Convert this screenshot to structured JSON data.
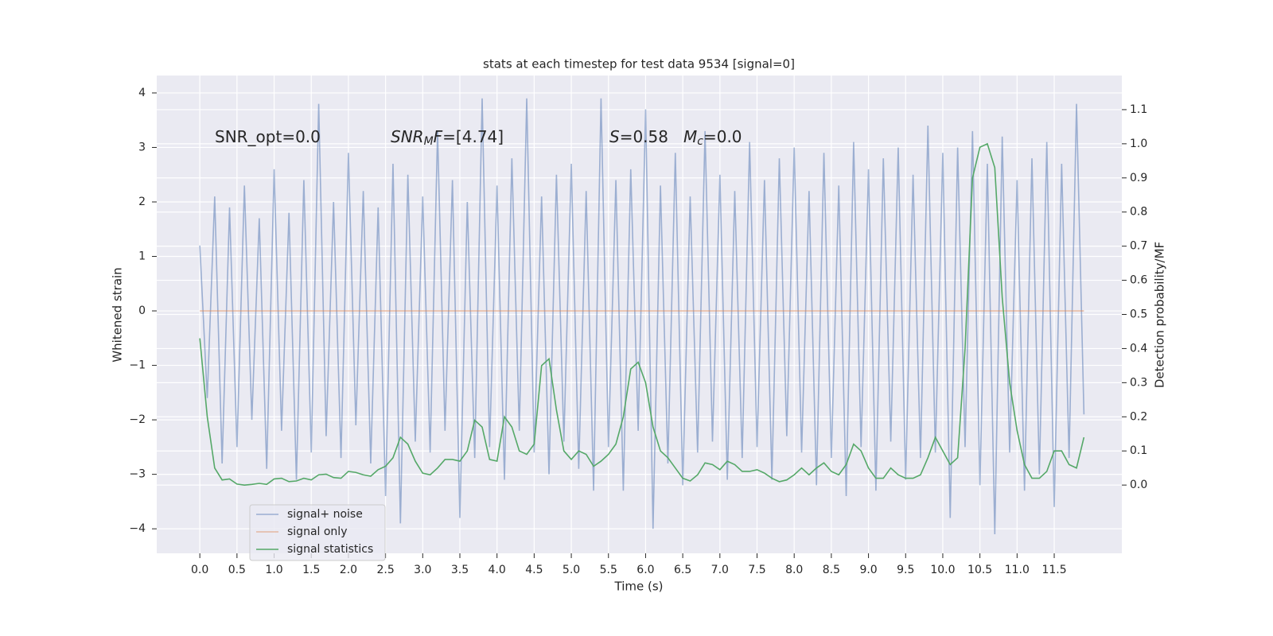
{
  "chart_data": {
    "type": "line",
    "title": "stats at each timestep for test data 9534 [signal=0]",
    "xlabel": "Time (s)",
    "ylabel": "Whitened strain",
    "y2label": "Detection probability/MF",
    "annotations": [
      {
        "segments": [
          {
            "text": "SNR_opt=0.0"
          }
        ]
      },
      {
        "segments": [
          {
            "text": "SNR",
            "style": "italic"
          },
          {
            "text": "M",
            "style": "sub"
          },
          {
            "text": "F",
            "style": "italic"
          },
          {
            "text": "=[4.74]"
          }
        ]
      },
      {
        "segments": [
          {
            "text": "S",
            "style": "italic"
          },
          {
            "text": "=0.58"
          }
        ]
      },
      {
        "segments": [
          {
            "text": "M",
            "style": "italic"
          },
          {
            "text": "c",
            "style": "sub"
          },
          {
            "text": "=0.0"
          }
        ]
      }
    ],
    "x": [
      0.0,
      0.1,
      0.2,
      0.3,
      0.4,
      0.5,
      0.6,
      0.7,
      0.8,
      0.9,
      1.0,
      1.1,
      1.2,
      1.3,
      1.4,
      1.5,
      1.6,
      1.7,
      1.8,
      1.9,
      2.0,
      2.1,
      2.2,
      2.3,
      2.4,
      2.5,
      2.6,
      2.7,
      2.8,
      2.9,
      3.0,
      3.1,
      3.2,
      3.3,
      3.4,
      3.5,
      3.6,
      3.7,
      3.8,
      3.9,
      4.0,
      4.1,
      4.2,
      4.3,
      4.4,
      4.5,
      4.6,
      4.7,
      4.8,
      4.9,
      5.0,
      5.1,
      5.2,
      5.3,
      5.4,
      5.5,
      5.6,
      5.7,
      5.8,
      5.9,
      6.0,
      6.1,
      6.2,
      6.3,
      6.4,
      6.5,
      6.6,
      6.7,
      6.8,
      6.9,
      7.0,
      7.1,
      7.2,
      7.3,
      7.4,
      7.5,
      7.6,
      7.7,
      7.8,
      7.9,
      8.0,
      8.1,
      8.2,
      8.3,
      8.4,
      8.5,
      8.6,
      8.7,
      8.8,
      8.9,
      9.0,
      9.1,
      9.2,
      9.3,
      9.4,
      9.5,
      9.6,
      9.7,
      9.8,
      9.9,
      10.0,
      10.1,
      10.2,
      10.3,
      10.4,
      10.5,
      10.6,
      10.7,
      10.8,
      10.9,
      11.0,
      11.1,
      11.2,
      11.3,
      11.4,
      11.5,
      11.6,
      11.7,
      11.8,
      11.9
    ],
    "series": [
      {
        "name": "signal+ noise",
        "color": "#4c72b0",
        "opacity": 0.5,
        "values": [
          1.2,
          -1.6,
          2.1,
          -2.8,
          1.9,
          -2.5,
          2.3,
          -2.0,
          1.7,
          -2.9,
          2.6,
          -2.2,
          1.8,
          -3.1,
          2.4,
          -2.6,
          3.8,
          -2.3,
          2.0,
          -2.7,
          2.9,
          -2.1,
          2.2,
          -2.8,
          1.9,
          -3.4,
          2.7,
          -3.9,
          2.5,
          -2.4,
          2.1,
          -2.6,
          3.3,
          -2.2,
          2.4,
          -3.8,
          2.0,
          -2.7,
          3.9,
          -2.5,
          2.3,
          -3.1,
          2.8,
          -2.2,
          3.9,
          -2.6,
          2.1,
          -3.0,
          2.5,
          -2.4,
          2.7,
          -2.9,
          2.2,
          -3.3,
          3.9,
          -2.5,
          2.4,
          -3.3,
          2.6,
          -2.2,
          3.7,
          -4.0,
          2.3,
          -2.8,
          2.9,
          -3.2,
          2.1,
          -2.6,
          3.3,
          -2.4,
          2.5,
          -3.1,
          2.2,
          -2.7,
          3.1,
          -2.5,
          2.4,
          -3.1,
          2.8,
          -2.3,
          3.0,
          -2.6,
          2.2,
          -3.2,
          2.9,
          -2.7,
          2.3,
          -3.4,
          3.1,
          -2.5,
          2.6,
          -3.3,
          2.8,
          -2.4,
          3.0,
          -3.1,
          2.5,
          -2.7,
          3.4,
          -2.6,
          2.9,
          -3.8,
          3.0,
          -2.5,
          3.3,
          -3.2,
          2.7,
          -4.1,
          3.2,
          -2.6,
          2.4,
          -3.3,
          2.8,
          -3.0,
          3.1,
          -3.6,
          2.7,
          -2.7,
          3.8,
          -1.9
        ]
      },
      {
        "name": "signal only",
        "color": "#dd8452",
        "opacity": 0.5,
        "x": [
          0.0,
          11.9
        ],
        "values": [
          0,
          0
        ]
      },
      {
        "name": "signal statistics",
        "color": "#55a868",
        "opacity": 1,
        "axis": "y2",
        "values": [
          0.43,
          0.2,
          0.05,
          0.015,
          0.018,
          0.003,
          0.0,
          0.002,
          0.005,
          0.002,
          0.018,
          0.02,
          0.01,
          0.012,
          0.02,
          0.015,
          0.03,
          0.032,
          0.022,
          0.02,
          0.04,
          0.037,
          0.03,
          0.026,
          0.045,
          0.055,
          0.08,
          0.14,
          0.12,
          0.07,
          0.035,
          0.03,
          0.05,
          0.075,
          0.075,
          0.07,
          0.1,
          0.19,
          0.17,
          0.075,
          0.07,
          0.2,
          0.17,
          0.1,
          0.09,
          0.12,
          0.35,
          0.37,
          0.22,
          0.1,
          0.075,
          0.1,
          0.09,
          0.055,
          0.07,
          0.09,
          0.12,
          0.2,
          0.34,
          0.36,
          0.3,
          0.17,
          0.1,
          0.08,
          0.05,
          0.02,
          0.012,
          0.03,
          0.065,
          0.06,
          0.045,
          0.07,
          0.06,
          0.04,
          0.04,
          0.045,
          0.035,
          0.02,
          0.01,
          0.015,
          0.03,
          0.05,
          0.03,
          0.05,
          0.065,
          0.04,
          0.03,
          0.06,
          0.12,
          0.1,
          0.05,
          0.02,
          0.02,
          0.05,
          0.03,
          0.02,
          0.02,
          0.03,
          0.08,
          0.14,
          0.1,
          0.06,
          0.08,
          0.4,
          0.9,
          0.99,
          1.0,
          0.93,
          0.55,
          0.3,
          0.16,
          0.06,
          0.02,
          0.02,
          0.04,
          0.1,
          0.1,
          0.06,
          0.05,
          0.14
        ]
      }
    ],
    "xlim": [
      -0.58,
      12.41
    ],
    "xticks": [
      {
        "value": 0,
        "label": "0.0"
      },
      {
        "value": 0.5,
        "label": "0.5"
      },
      {
        "value": 1,
        "label": "1.0"
      },
      {
        "value": 1.5,
        "label": "1.5"
      },
      {
        "value": 2,
        "label": "2.0"
      },
      {
        "value": 2.5,
        "label": "2.5"
      },
      {
        "value": 3,
        "label": "3.0"
      },
      {
        "value": 3.5,
        "label": "3.5"
      },
      {
        "value": 4,
        "label": "4.0"
      },
      {
        "value": 4.5,
        "label": "4.5"
      },
      {
        "value": 5,
        "label": "5.0"
      },
      {
        "value": 5.5,
        "label": "5.5"
      },
      {
        "value": 6,
        "label": "6.0"
      },
      {
        "value": 6.5,
        "label": "6.5"
      },
      {
        "value": 7,
        "label": "7.0"
      },
      {
        "value": 7.5,
        "label": "7.5"
      },
      {
        "value": 8,
        "label": "8.0"
      },
      {
        "value": 8.5,
        "label": "8.5"
      },
      {
        "value": 9,
        "label": "9.0"
      },
      {
        "value": 9.5,
        "label": "9.5"
      },
      {
        "value": 10,
        "label": "10.0"
      },
      {
        "value": 10.5,
        "label": "10.5"
      },
      {
        "value": 11,
        "label": "11.0"
      },
      {
        "value": 11.5,
        "label": "11.5"
      }
    ],
    "ylim": [
      -4.45,
      4.32
    ],
    "yticks": [
      {
        "value": -4,
        "label": "−4"
      },
      {
        "value": -3,
        "label": "−3"
      },
      {
        "value": -2,
        "label": "−2"
      },
      {
        "value": -1,
        "label": "−1"
      },
      0,
      1,
      2,
      3,
      4
    ],
    "y2lim": [
      -0.2,
      1.2
    ],
    "y2ticks": [
      {
        "value": 0,
        "label": "0.0"
      },
      {
        "value": 0.1,
        "label": "0.1"
      },
      {
        "value": 0.2,
        "label": "0.2"
      },
      {
        "value": 0.3,
        "label": "0.3"
      },
      {
        "value": 0.4,
        "label": "0.4"
      },
      {
        "value": 0.5,
        "label": "0.5"
      },
      {
        "value": 0.6,
        "label": "0.6"
      },
      {
        "value": 0.7,
        "label": "0.7"
      },
      {
        "value": 0.8,
        "label": "0.8"
      },
      {
        "value": 0.9,
        "label": "0.9"
      },
      {
        "value": 1,
        "label": "1.0"
      },
      {
        "value": 1.1,
        "label": "1.1"
      }
    ],
    "grid": true,
    "background": "#eaeaf2",
    "legend": "lower left"
  }
}
